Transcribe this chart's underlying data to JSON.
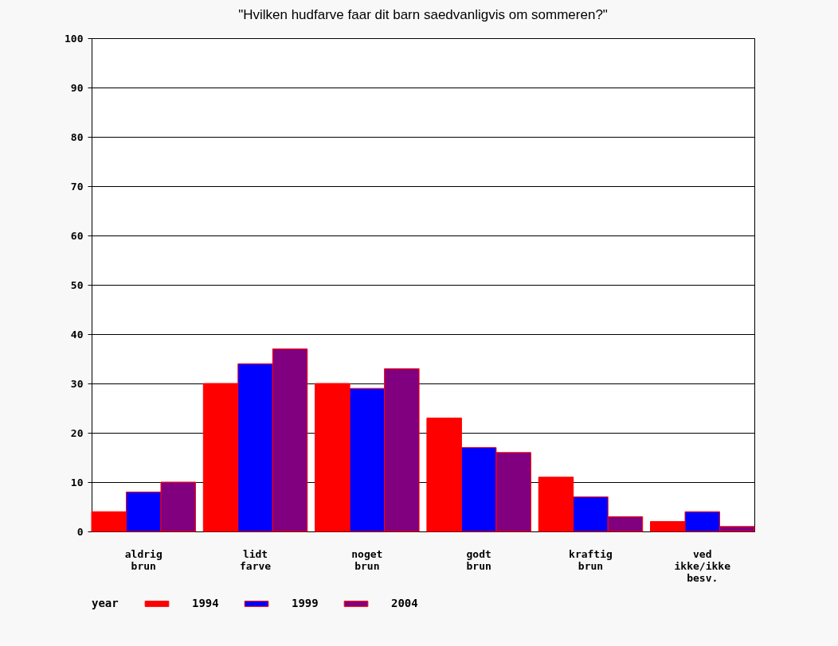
{
  "chart_data": {
    "type": "bar",
    "title": "\"Hvilken hudfarve faar dit barn saedvanligvis om sommeren?\"",
    "categories": [
      "aldrig brun",
      "lidt farve",
      "noget brun",
      "godt brun",
      "kraftig brun",
      "ved ikke/ikke besv."
    ],
    "series": [
      {
        "name": "1994",
        "color": "#ff0000",
        "values": [
          4,
          30,
          30,
          23,
          11,
          2
        ]
      },
      {
        "name": "1999",
        "color": "#0000ff",
        "values": [
          8,
          34,
          29,
          17,
          7,
          4
        ]
      },
      {
        "name": "2004",
        "color": "#800080",
        "values": [
          10,
          37,
          33,
          16,
          3,
          1
        ]
      }
    ],
    "legend_title": "year",
    "legend": "bottom",
    "grid": "y",
    "ylim": [
      0,
      100
    ],
    "yticks": [
      0,
      10,
      20,
      30,
      40,
      50,
      60,
      70,
      80,
      90,
      100
    ]
  }
}
